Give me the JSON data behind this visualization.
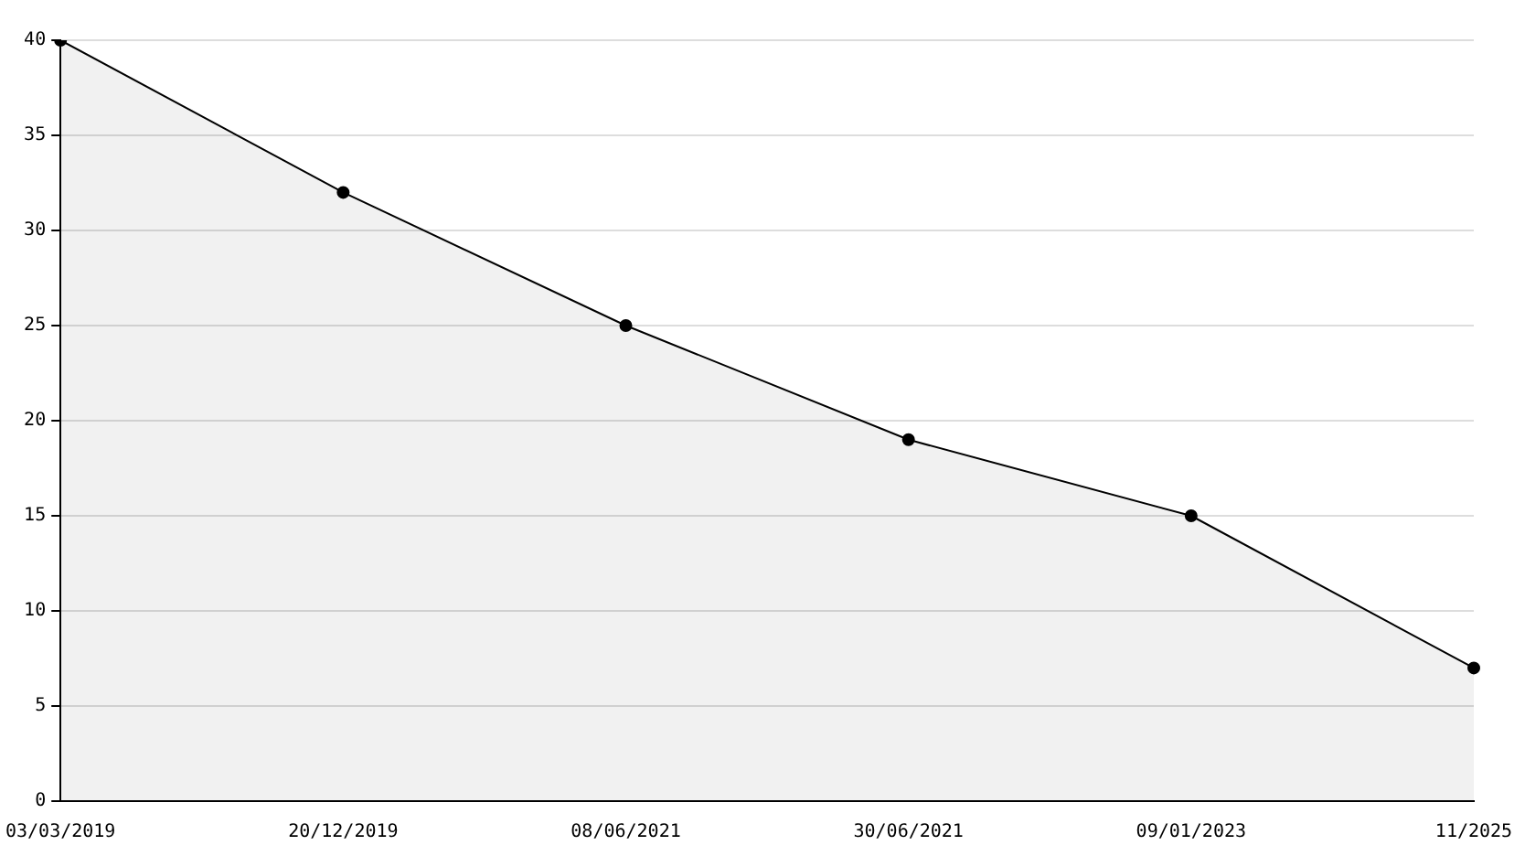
{
  "chart_data": {
    "type": "area",
    "categories": [
      "03/03/2019",
      "20/12/2019",
      "08/06/2021",
      "30/06/2021",
      "09/01/2023",
      "11/2025"
    ],
    "series": [
      {
        "color": "#000000",
        "values": [
          40,
          32,
          25,
          19,
          15,
          7
        ]
      }
    ],
    "ylim": [
      0,
      40
    ],
    "yticks": [
      0,
      5,
      10,
      15,
      20,
      25,
      30,
      35,
      40
    ],
    "grid": "y",
    "marker": "circle",
    "line_style": "solid",
    "legend": false
  }
}
